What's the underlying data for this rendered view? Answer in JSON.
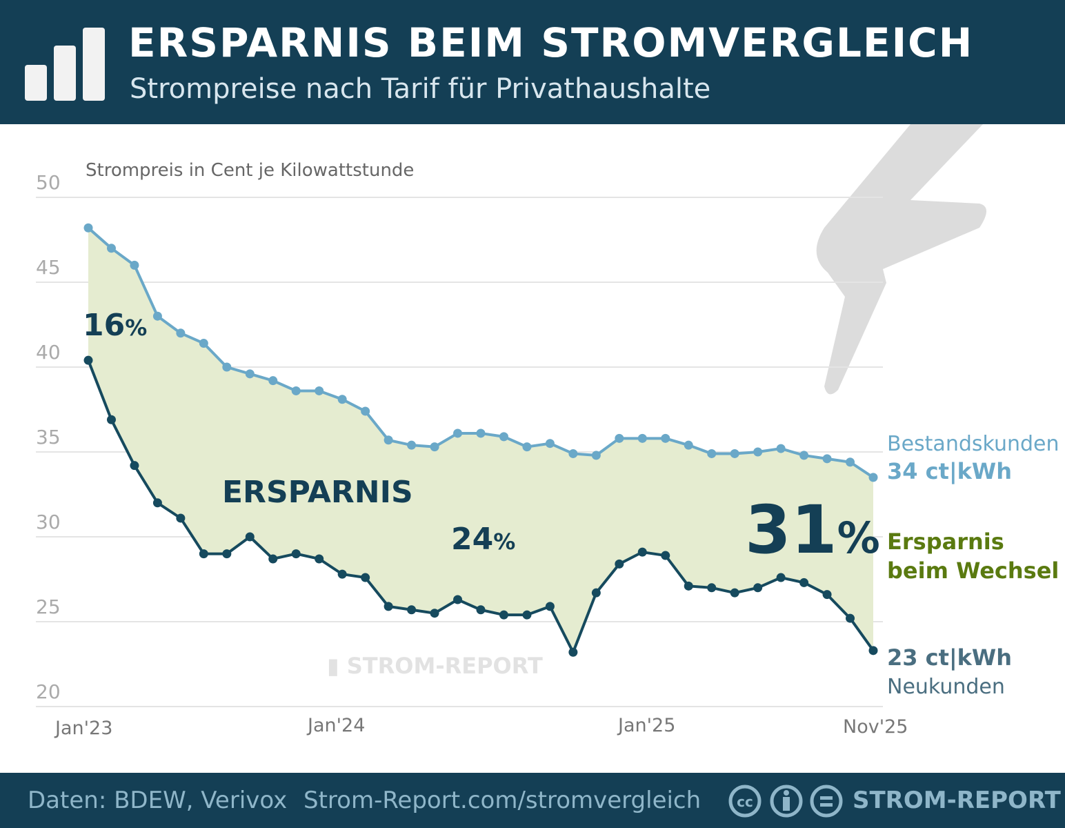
{
  "header": {
    "title": "ERSPARNIS BEIM STROMVERGLEICH",
    "subtitle": "Strompreise nach Tarif für Privathaushalte"
  },
  "footer": {
    "source": "Daten: BDEW, Verivox",
    "url": "Strom-Report.com/stromvergleich",
    "brand": "STROM-REPORT",
    "license_icons": [
      "cc-icon",
      "by-icon",
      "nd-icon"
    ]
  },
  "watermark": "STROM-REPORT",
  "colors": {
    "header_bg": "#143f55",
    "bestandskunden": "#6aa8c8",
    "neukunden": "#164a5e",
    "fill": "#e5ecd0",
    "ersparnis_text": "#5a7a10"
  },
  "annotations": {
    "savings_label": "ERSPARNIS",
    "pct_start": "16",
    "pct_mid": "24",
    "pct_end": "31",
    "pct_sign": "%",
    "series_top_name": "Bestandskunden",
    "series_top_value": "34 ct|kWh",
    "savings_side_1": "Ersparnis",
    "savings_side_2": "beim Wechsel",
    "series_bottom_value": "23 ct|kWh",
    "series_bottom_name": "Neukunden"
  },
  "chart_data": {
    "type": "area",
    "title": "ERSPARNIS BEIM STROMVERGLEICH",
    "subtitle": "Strompreise nach Tarif für Privathaushalte",
    "ylabel": "Strompreis in Cent je Kilowattstunde",
    "ylim": [
      20,
      50
    ],
    "yticks": [
      "50",
      "45",
      "40",
      "35",
      "30",
      "25",
      "20"
    ],
    "xticks": [
      "Jan'23",
      "Jan'24",
      "Jan'25",
      "Nov'25"
    ],
    "x_range": [
      "Jan 2023",
      "Nov 2025"
    ],
    "x_step": "monthly",
    "grid": true,
    "series": [
      {
        "name": "Bestandskunden",
        "values": [
          48.2,
          47.0,
          46.0,
          43.0,
          42.0,
          41.4,
          40.0,
          39.6,
          39.2,
          38.6,
          38.6,
          38.1,
          37.4,
          35.7,
          35.4,
          35.3,
          36.1,
          36.1,
          35.9,
          35.3,
          35.5,
          34.9,
          34.8,
          35.8,
          35.8,
          35.8,
          35.4,
          34.9,
          34.9,
          35.0,
          35.2,
          34.8,
          34.6,
          34.4,
          33.5
        ]
      },
      {
        "name": "Neukunden",
        "values": [
          40.4,
          36.9,
          34.2,
          32.0,
          31.1,
          29.0,
          29.0,
          30.0,
          28.7,
          29.0,
          28.7,
          27.8,
          27.6,
          25.9,
          25.7,
          25.5,
          26.3,
          25.7,
          25.4,
          25.4,
          25.9,
          23.2,
          26.7,
          28.4,
          29.1,
          28.9,
          27.1,
          27.0,
          26.7,
          27.0,
          27.6,
          27.3,
          26.6,
          25.2,
          23.3
        ]
      }
    ]
  }
}
